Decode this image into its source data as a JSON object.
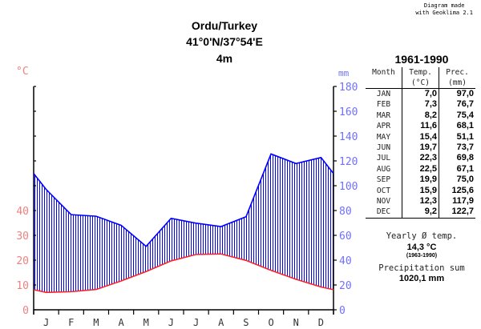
{
  "credit": [
    "Diagram made",
    "with Geoklima 2.1"
  ],
  "title": {
    "station": "Ordu/Turkey",
    "coords": "41°0'N/37°54'E",
    "elevation": "4m"
  },
  "chart_data": {
    "type": "line",
    "title": "Ordu/Turkey",
    "categories": [
      "J",
      "F",
      "M",
      "A",
      "M",
      "J",
      "J",
      "A",
      "S",
      "O",
      "N",
      "D"
    ],
    "series": [
      {
        "name": "Temperature",
        "unit": "°C",
        "color": "#ff2020",
        "values": [
          7.0,
          7.3,
          8.2,
          11.6,
          15.4,
          19.7,
          22.3,
          22.5,
          19.9,
          15.9,
          12.3,
          9.2
        ]
      },
      {
        "name": "Precipitation",
        "unit": "mm",
        "color": "#0000ff",
        "values": [
          97.0,
          76.7,
          75.4,
          68.1,
          51.1,
          73.7,
          69.8,
          67.1,
          75.0,
          125.6,
          117.9,
          122.7
        ]
      }
    ],
    "left_axis": {
      "label": "°C",
      "ticks": [
        0,
        10,
        20,
        30,
        40
      ],
      "range": [
        0,
        90
      ],
      "color": "#f08080"
    },
    "right_axis": {
      "label": "mm",
      "ticks": [
        0,
        20,
        40,
        60,
        80,
        100,
        120,
        140,
        160,
        180
      ],
      "range": [
        0,
        180
      ],
      "color": "#7070ff"
    }
  },
  "table": {
    "period": "1961-1990",
    "headers": {
      "month": "Month",
      "temp": "Temp.",
      "temp_unit": "(°C)",
      "prec": "Prec.",
      "prec_unit": "(mm)"
    },
    "rows": [
      [
        "JAN",
        "7,0",
        "97,0"
      ],
      [
        "FEB",
        "7,3",
        "76,7"
      ],
      [
        "MAR",
        "8,2",
        "75,4"
      ],
      [
        "APR",
        "11,6",
        "68,1"
      ],
      [
        "MAY",
        "15,4",
        "51,1"
      ],
      [
        "JUN",
        "19,7",
        "73,7"
      ],
      [
        "JUL",
        "22,3",
        "69,8"
      ],
      [
        "AUG",
        "22,5",
        "67,1"
      ],
      [
        "SEP",
        "19,9",
        "75,0"
      ],
      [
        "OCT",
        "15,9",
        "125,6"
      ],
      [
        "NOV",
        "12,3",
        "117,9"
      ],
      [
        "DEC",
        "9,2",
        "122,7"
      ]
    ]
  },
  "summary": {
    "yearly_label": "Yearly Ø temp.",
    "yearly_value": "14,3 °C",
    "yearly_period": "(1963-1990)",
    "prec_label": "Precipitation sum",
    "prec_value": "1020,1 mm"
  }
}
